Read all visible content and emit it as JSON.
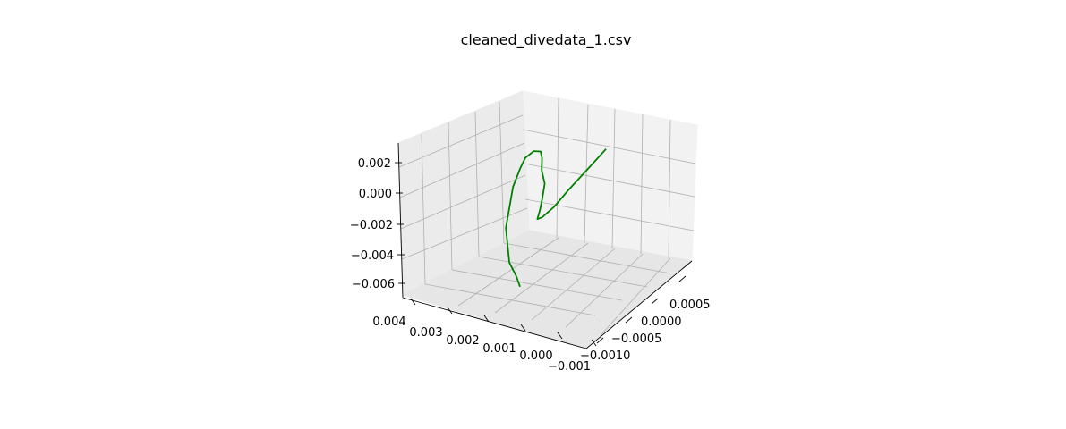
{
  "chart_data": {
    "type": "line3d",
    "title": "cleaned_divedata_1.csv",
    "xlabel": "",
    "ylabel": "",
    "zlabel": "",
    "x_ticks": [
      "0.004",
      "0.003",
      "0.002",
      "0.001",
      "0.000",
      "−0.001"
    ],
    "y_ticks": [
      "0.0005",
      "0.0000",
      "−0.0005",
      "−0.0010"
    ],
    "z_ticks": [
      "0.002",
      "0.000",
      "−0.002",
      "−0.004",
      "−0.006"
    ],
    "grid": true,
    "series": [
      {
        "color": "#008000",
        "points": [
          [
            0.0,
            0.0,
            0.0026
          ],
          [
            0.0001,
            -0.0003,
            0.0018
          ],
          [
            0.0002,
            -0.0006,
            0.001
          ],
          [
            0.0003,
            -0.0008,
            0.0003
          ],
          [
            0.0005,
            -0.0009,
            -0.0003
          ],
          [
            0.0008,
            -0.0008,
            -0.0008
          ],
          [
            0.0012,
            -0.0005,
            -0.0011
          ],
          [
            0.0016,
            -0.0002,
            -0.0012
          ],
          [
            0.002,
            0.0001,
            -0.0011
          ],
          [
            0.0024,
            0.0003,
            -0.0009
          ],
          [
            0.0027,
            0.0005,
            -0.0007
          ],
          [
            0.0029,
            0.0006,
            -0.0006
          ],
          [
            0.0031,
            0.0006,
            -0.0007
          ],
          [
            0.0032,
            0.0005,
            -0.001
          ],
          [
            0.0032,
            0.0004,
            -0.0015
          ],
          [
            0.0031,
            0.0002,
            -0.0022
          ],
          [
            0.0029,
            0.0,
            -0.003
          ],
          [
            0.0027,
            -0.0002,
            -0.0038
          ],
          [
            0.0025,
            -0.0003,
            -0.0046
          ],
          [
            0.0023,
            -0.0004,
            -0.0054
          ],
          [
            0.0021,
            -0.0004,
            -0.0062
          ],
          [
            0.002,
            -0.0004,
            -0.0068
          ]
        ]
      }
    ]
  }
}
